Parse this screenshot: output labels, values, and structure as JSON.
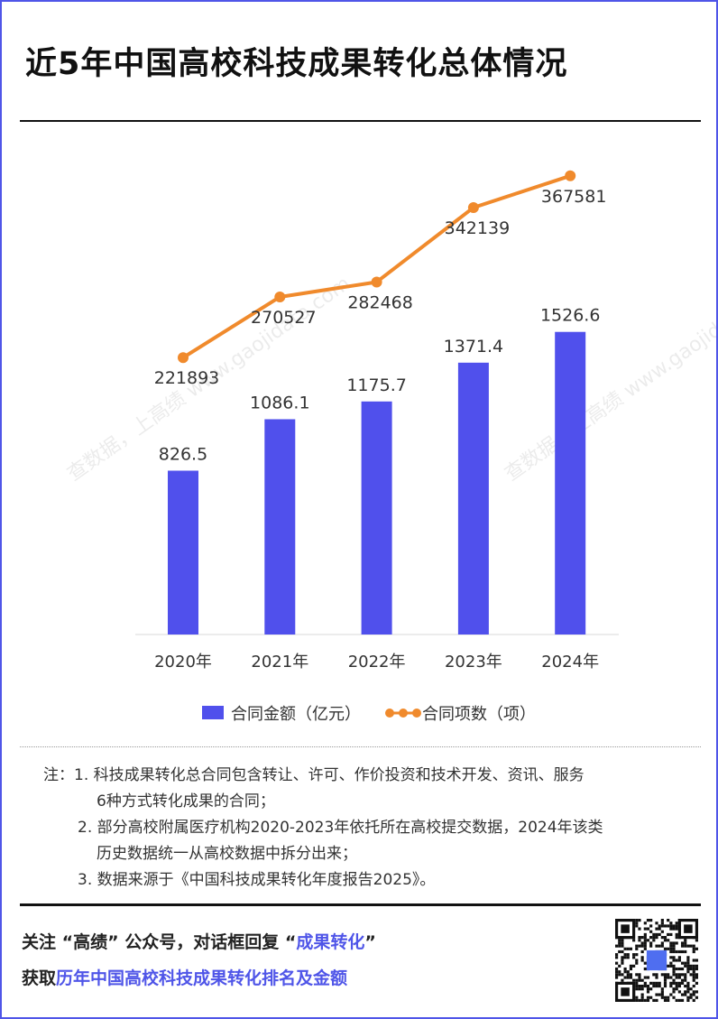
{
  "title": "近5年中国高校科技成果转化总体情况",
  "watermark": "查数据，上高绩 www.gaojidata.com",
  "chart_data": {
    "type": "bar+line",
    "categories": [
      "2020年",
      "2021年",
      "2022年",
      "2023年",
      "2024年"
    ],
    "series": [
      {
        "name": "合同金额（亿元）",
        "type": "bar",
        "values": [
          826.5,
          1086.1,
          1175.7,
          1371.4,
          1526.6
        ],
        "labels": [
          "826.5",
          "1086.1",
          "1175.7",
          "1371.4",
          "1526.6"
        ],
        "color": "#5050ec",
        "ylim": [
          0,
          2600
        ]
      },
      {
        "name": "合同项数（项）",
        "type": "line",
        "values": [
          221893,
          270527,
          282468,
          342139,
          367581
        ],
        "labels": [
          "221893",
          "270527",
          "282468",
          "342139",
          "367581"
        ],
        "color": "#f08a2c",
        "ylim": [
          0,
          413000
        ]
      }
    ],
    "legend": "bottom",
    "grid": false
  },
  "notes": [
    "注：1. 科技成果转化总合同包含转让、许可、作价投资和技术开发、资讯、服务",
    "6种方式转化成果的合同；",
    "2. 部分高校附属医疗机构2020-2023年依托所在高校提交数据，2024年该类",
    "历史数据统一从高校数据中拆分出来；",
    "3. 数据来源于《中国科技成果转化年度报告2025》。"
  ],
  "footer": {
    "line1_prefix": "关注 “高绩” 公众号，对话框回复 “",
    "line1_highlight": "成果转化",
    "line1_suffix": "”",
    "line2_prefix": "获取",
    "line2_highlight": "历年中国高校科技成果转化排名及金额"
  }
}
